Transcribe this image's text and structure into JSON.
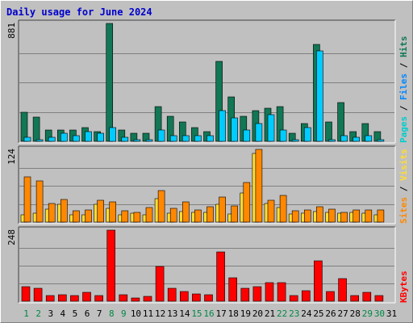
{
  "chart_data": [
    {
      "type": "bar",
      "title": "Daily usage for June 2024",
      "panel": "pages-files-hits",
      "max_label": "881",
      "ylim": [
        0,
        881
      ],
      "categories": [
        "1",
        "2",
        "3",
        "4",
        "5",
        "6",
        "7",
        "8",
        "9",
        "10",
        "11",
        "12",
        "13",
        "14",
        "15",
        "16",
        "17",
        "18",
        "19",
        "20",
        "21",
        "22",
        "23",
        "24",
        "25",
        "26",
        "27",
        "28",
        "29",
        "30",
        "31"
      ],
      "series": [
        {
          "name": "Hits",
          "color": "#117755",
          "values": [
            215,
            183,
            87,
            87,
            87,
            101,
            72,
            881,
            87,
            58,
            58,
            259,
            187,
            144,
            101,
            72,
            598,
            331,
            187,
            230,
            245,
            259,
            58,
            130,
            727,
            144,
            288,
            72,
            130,
            72,
            0
          ]
        },
        {
          "name": "Files",
          "color": "#00ccff",
          "values": [
            29,
            14,
            29,
            58,
            43,
            72,
            58,
            101,
            29,
            14,
            14,
            87,
            43,
            43,
            43,
            43,
            230,
            173,
            87,
            130,
            202,
            87,
            14,
            101,
            677,
            14,
            43,
            29,
            43,
            14,
            0
          ]
        },
        {
          "name": "Pages",
          "color": "#00aaaa",
          "values": [
            0,
            0,
            0,
            0,
            0,
            0,
            0,
            0,
            0,
            0,
            0,
            0,
            0,
            0,
            0,
            0,
            0,
            0,
            0,
            0,
            0,
            0,
            0,
            0,
            0,
            0,
            0,
            0,
            0,
            0,
            0
          ]
        }
      ],
      "right_label": [
        "Pages",
        "Files",
        "Hits"
      ],
      "right_label_colors": [
        "#00cccc",
        "#0088ff",
        "#117755"
      ]
    },
    {
      "type": "bar",
      "panel": "visits-sites",
      "max_label": "124",
      "ylim": [
        0,
        124
      ],
      "categories": [
        "1",
        "2",
        "3",
        "4",
        "5",
        "6",
        "7",
        "8",
        "9",
        "10",
        "11",
        "12",
        "13",
        "14",
        "15",
        "16",
        "17",
        "18",
        "19",
        "20",
        "21",
        "22",
        "23",
        "24",
        "25",
        "26",
        "27",
        "28",
        "29",
        "30",
        "31"
      ],
      "series": [
        {
          "name": "Visits",
          "color": "#ffdd33",
          "values": [
            13,
            15,
            22,
            30,
            13,
            12,
            30,
            23,
            12,
            15,
            12,
            40,
            15,
            18,
            16,
            16,
            30,
            14,
            50,
            117,
            32,
            25,
            14,
            15,
            18,
            17,
            15,
            17,
            15,
            13,
            0
          ]
        },
        {
          "name": "Sites",
          "color": "#ff8800",
          "values": [
            77,
            70,
            31,
            39,
            19,
            20,
            37,
            35,
            19,
            17,
            25,
            54,
            24,
            34,
            21,
            26,
            43,
            27,
            67,
            124,
            37,
            45,
            19,
            21,
            26,
            22,
            17,
            20,
            20,
            20,
            0
          ]
        }
      ],
      "right_label": [
        "Sites",
        "Visits"
      ],
      "right_label_colors": [
        "#ff8800",
        "#ffdd33"
      ]
    },
    {
      "type": "bar",
      "panel": "kbytes",
      "max_label": "248",
      "ylim": [
        0,
        248
      ],
      "categories": [
        "1",
        "2",
        "3",
        "4",
        "5",
        "6",
        "7",
        "8",
        "9",
        "10",
        "11",
        "12",
        "13",
        "14",
        "15",
        "16",
        "17",
        "18",
        "19",
        "20",
        "21",
        "22",
        "23",
        "24",
        "25",
        "26",
        "27",
        "28",
        "29",
        "30",
        "31"
      ],
      "series": [
        {
          "name": "KBytes",
          "color": "#ff0000",
          "values": [
            52,
            44,
            20,
            22,
            20,
            32,
            20,
            248,
            22,
            12,
            18,
            122,
            44,
            34,
            24,
            22,
            172,
            82,
            46,
            52,
            64,
            64,
            20,
            36,
            142,
            34,
            78,
            20,
            30,
            20,
            0
          ]
        }
      ],
      "right_label": [
        "KBytes"
      ],
      "right_label_colors": [
        "#ff0000"
      ]
    }
  ],
  "day_labels": [
    "1",
    "2",
    "3",
    "4",
    "5",
    "6",
    "7",
    "8",
    "9",
    "10",
    "11",
    "12",
    "13",
    "14",
    "15",
    "16",
    "17",
    "18",
    "19",
    "20",
    "21",
    "22",
    "23",
    "24",
    "25",
    "26",
    "27",
    "28",
    "29",
    "30",
    "31"
  ],
  "weekend_days": [
    1,
    2,
    8,
    9,
    15,
    16,
    22,
    23,
    29,
    30
  ],
  "weekend_color": "#008844",
  "weekday_color": "#000000"
}
